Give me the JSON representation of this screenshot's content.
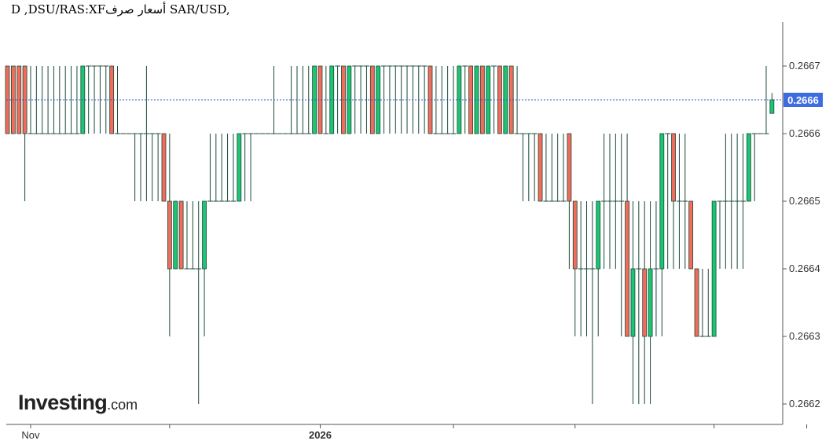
{
  "chart_title": "D ,DSU/RAS:XFأسعار صرف SAR/USD,",
  "logo": {
    "main": "Investing",
    "domain": ".com"
  },
  "colors": {
    "up": "#1cc473",
    "down": "#f26b5b",
    "wick": "#1a4a38",
    "current_line": "#3355cc",
    "price_tag_bg": "#3d6be0",
    "axis": "#555555"
  },
  "chart_data": {
    "type": "candlestick",
    "title": "D ,DSU/RAS:XFأسعار صرف SAR/USD,",
    "xlabel": "",
    "ylabel": "",
    "ylim": [
      0.26615,
      0.26677
    ],
    "y_ticks": [
      "0.2667",
      "0.2666",
      "0.2665",
      "0.2664",
      "0.2663",
      "0.2662"
    ],
    "x_ticks": [
      {
        "label": "Nov",
        "index": 4
      },
      {
        "label": "",
        "index": 28
      },
      {
        "label": "2026",
        "index": 54
      },
      {
        "label": "",
        "index": 77
      },
      {
        "label": "",
        "index": 98
      },
      {
        "label": "",
        "index": 122
      },
      {
        "label": "",
        "index": 138
      }
    ],
    "current_price": "0.2666",
    "current_value": 0.26665,
    "candles": [
      [
        0.2667,
        0.2667,
        0.2666,
        0.2666
      ],
      [
        0.2667,
        0.2667,
        0.2666,
        0.2666
      ],
      [
        0.2667,
        0.2667,
        0.2666,
        0.2666
      ],
      [
        0.2667,
        0.2667,
        0.2665,
        0.2666
      ],
      [
        0.2666,
        0.2667,
        0.2666,
        0.2666
      ],
      [
        0.2666,
        0.2667,
        0.2666,
        0.2666
      ],
      [
        0.2666,
        0.2667,
        0.2666,
        0.2666
      ],
      [
        0.2666,
        0.2667,
        0.2666,
        0.2666
      ],
      [
        0.2666,
        0.2667,
        0.2666,
        0.2666
      ],
      [
        0.2666,
        0.2667,
        0.2666,
        0.2666
      ],
      [
        0.2666,
        0.2667,
        0.2666,
        0.2666
      ],
      [
        0.2666,
        0.2667,
        0.2666,
        0.2666
      ],
      [
        0.2666,
        0.2667,
        0.2666,
        0.2666
      ],
      [
        0.2666,
        0.2667,
        0.2666,
        0.2667
      ],
      [
        0.2667,
        0.2667,
        0.2666,
        0.2667
      ],
      [
        0.2667,
        0.2667,
        0.2666,
        0.2667
      ],
      [
        0.2667,
        0.2667,
        0.2666,
        0.2667
      ],
      [
        0.2667,
        0.2667,
        0.2666,
        0.2667
      ],
      [
        0.2667,
        0.2667,
        0.2666,
        0.2666
      ],
      [
        0.2666,
        0.2667,
        0.2666,
        0.2666
      ],
      [
        0.2666,
        0.2666,
        0.2666,
        0.2666
      ],
      [
        0.2666,
        0.2666,
        0.2666,
        0.2666
      ],
      [
        0.2666,
        0.2666,
        0.2665,
        0.2666
      ],
      [
        0.2666,
        0.2666,
        0.2665,
        0.2666
      ],
      [
        0.2666,
        0.2667,
        0.2665,
        0.2666
      ],
      [
        0.2666,
        0.2666,
        0.2665,
        0.2666
      ],
      [
        0.2666,
        0.2666,
        0.2665,
        0.2666
      ],
      [
        0.2666,
        0.2666,
        0.2665,
        0.2665
      ],
      [
        0.2665,
        0.2666,
        0.2663,
        0.2664
      ],
      [
        0.2664,
        0.2665,
        0.2664,
        0.2665
      ],
      [
        0.2665,
        0.2665,
        0.2664,
        0.2664
      ],
      [
        0.2664,
        0.2665,
        0.2664,
        0.2664
      ],
      [
        0.2664,
        0.2665,
        0.2664,
        0.2664
      ],
      [
        0.2664,
        0.2665,
        0.2662,
        0.2664
      ],
      [
        0.2664,
        0.2665,
        0.2663,
        0.2665
      ],
      [
        0.2665,
        0.2666,
        0.2665,
        0.2665
      ],
      [
        0.2665,
        0.2666,
        0.2665,
        0.2665
      ],
      [
        0.2665,
        0.2666,
        0.2665,
        0.2665
      ],
      [
        0.2665,
        0.2666,
        0.2665,
        0.2665
      ],
      [
        0.2665,
        0.2666,
        0.2665,
        0.2665
      ],
      [
        0.2665,
        0.2666,
        0.2665,
        0.2666
      ],
      [
        0.2666,
        0.2666,
        0.2665,
        0.2666
      ],
      [
        0.2666,
        0.2666,
        0.2665,
        0.2666
      ],
      [
        0.2666,
        0.2666,
        0.2666,
        0.2666
      ],
      [
        0.2666,
        0.2666,
        0.2666,
        0.2666
      ],
      [
        0.2666,
        0.2666,
        0.2666,
        0.2666
      ],
      [
        0.2666,
        0.2667,
        0.2666,
        0.2666
      ],
      [
        0.2666,
        0.2666,
        0.2666,
        0.2666
      ],
      [
        0.2666,
        0.2666,
        0.2666,
        0.2666
      ],
      [
        0.2666,
        0.2667,
        0.2666,
        0.2666
      ],
      [
        0.2666,
        0.2667,
        0.2666,
        0.2666
      ],
      [
        0.2666,
        0.2667,
        0.2666,
        0.2666
      ],
      [
        0.2666,
        0.2667,
        0.2666,
        0.2666
      ],
      [
        0.2666,
        0.2667,
        0.2666,
        0.2667
      ],
      [
        0.2667,
        0.2667,
        0.2666,
        0.2666
      ],
      [
        0.2666,
        0.2667,
        0.2666,
        0.2666
      ],
      [
        0.2666,
        0.2667,
        0.2666,
        0.2667
      ],
      [
        0.2667,
        0.2667,
        0.2666,
        0.2667
      ],
      [
        0.2667,
        0.2667,
        0.2666,
        0.2666
      ],
      [
        0.2666,
        0.2667,
        0.2666,
        0.2667
      ],
      [
        0.2667,
        0.2667,
        0.2666,
        0.2667
      ],
      [
        0.2667,
        0.2667,
        0.2666,
        0.2667
      ],
      [
        0.2667,
        0.2667,
        0.2666,
        0.2667
      ],
      [
        0.2667,
        0.2667,
        0.2666,
        0.2666
      ],
      [
        0.2666,
        0.2667,
        0.2666,
        0.2667
      ],
      [
        0.2667,
        0.2667,
        0.2666,
        0.2667
      ],
      [
        0.2667,
        0.2667,
        0.2666,
        0.2667
      ],
      [
        0.2667,
        0.2667,
        0.2666,
        0.2667
      ],
      [
        0.2667,
        0.2667,
        0.2666,
        0.2667
      ],
      [
        0.2667,
        0.2667,
        0.2666,
        0.2667
      ],
      [
        0.2667,
        0.2667,
        0.2666,
        0.2667
      ],
      [
        0.2667,
        0.2667,
        0.2666,
        0.2667
      ],
      [
        0.2667,
        0.2667,
        0.2666,
        0.2667
      ],
      [
        0.2667,
        0.2667,
        0.2666,
        0.2666
      ],
      [
        0.2666,
        0.2667,
        0.2666,
        0.2666
      ],
      [
        0.2666,
        0.2667,
        0.2666,
        0.2666
      ],
      [
        0.2666,
        0.2667,
        0.2666,
        0.2666
      ],
      [
        0.2666,
        0.2667,
        0.2666,
        0.2666
      ],
      [
        0.2666,
        0.2667,
        0.2666,
        0.2667
      ],
      [
        0.2667,
        0.2667,
        0.2666,
        0.2667
      ],
      [
        0.2667,
        0.2667,
        0.2666,
        0.2666
      ],
      [
        0.2666,
        0.2667,
        0.2666,
        0.2667
      ],
      [
        0.2667,
        0.2667,
        0.2666,
        0.2666
      ],
      [
        0.2666,
        0.2667,
        0.2666,
        0.2667
      ],
      [
        0.2667,
        0.2667,
        0.2666,
        0.2667
      ],
      [
        0.2667,
        0.2667,
        0.2666,
        0.2666
      ],
      [
        0.2666,
        0.2667,
        0.2666,
        0.2667
      ],
      [
        0.2667,
        0.2667,
        0.2666,
        0.2666
      ],
      [
        0.2666,
        0.2667,
        0.2666,
        0.2666
      ],
      [
        0.2666,
        0.2666,
        0.2665,
        0.2666
      ],
      [
        0.2666,
        0.2666,
        0.2665,
        0.2666
      ],
      [
        0.2666,
        0.2666,
        0.2665,
        0.2666
      ],
      [
        0.2666,
        0.2666,
        0.2665,
        0.2665
      ],
      [
        0.2665,
        0.2666,
        0.2665,
        0.2665
      ],
      [
        0.2665,
        0.2666,
        0.2665,
        0.2665
      ],
      [
        0.2665,
        0.2666,
        0.2665,
        0.2665
      ],
      [
        0.2665,
        0.2666,
        0.2665,
        0.2665
      ],
      [
        0.2666,
        0.2666,
        0.2664,
        0.2665
      ],
      [
        0.2665,
        0.2665,
        0.2663,
        0.2664
      ],
      [
        0.2664,
        0.2665,
        0.2663,
        0.2664
      ],
      [
        0.2664,
        0.2665,
        0.2663,
        0.2664
      ],
      [
        0.2664,
        0.2665,
        0.2662,
        0.2664
      ],
      [
        0.2664,
        0.2665,
        0.2663,
        0.2665
      ],
      [
        0.2665,
        0.2666,
        0.2664,
        0.2665
      ],
      [
        0.2665,
        0.2666,
        0.2664,
        0.2665
      ],
      [
        0.2665,
        0.2666,
        0.2664,
        0.2665
      ],
      [
        0.2665,
        0.2666,
        0.2663,
        0.2665
      ],
      [
        0.2665,
        0.2666,
        0.2663,
        0.2663
      ],
      [
        0.2663,
        0.2665,
        0.2662,
        0.2664
      ],
      [
        0.2664,
        0.2665,
        0.2662,
        0.2664
      ],
      [
        0.2664,
        0.2665,
        0.2662,
        0.2663
      ],
      [
        0.2663,
        0.2665,
        0.2662,
        0.2664
      ],
      [
        0.2664,
        0.2665,
        0.2663,
        0.2664
      ],
      [
        0.2664,
        0.2666,
        0.2663,
        0.2666
      ],
      [
        0.2666,
        0.2666,
        0.2664,
        0.2666
      ],
      [
        0.2666,
        0.2666,
        0.2664,
        0.2665
      ],
      [
        0.2665,
        0.2666,
        0.2664,
        0.2665
      ],
      [
        0.2665,
        0.2666,
        0.2664,
        0.2665
      ],
      [
        0.2665,
        0.2665,
        0.2664,
        0.2664
      ],
      [
        0.2664,
        0.2664,
        0.2663,
        0.2663
      ],
      [
        0.2663,
        0.2664,
        0.2663,
        0.2663
      ],
      [
        0.2663,
        0.2664,
        0.2663,
        0.2663
      ],
      [
        0.2663,
        0.2665,
        0.2663,
        0.2665
      ],
      [
        0.2665,
        0.2665,
        0.2664,
        0.2665
      ],
      [
        0.2665,
        0.2666,
        0.2664,
        0.2665
      ],
      [
        0.2665,
        0.2666,
        0.2664,
        0.2665
      ],
      [
        0.2665,
        0.2666,
        0.2664,
        0.2665
      ],
      [
        0.2665,
        0.2666,
        0.2664,
        0.2665
      ],
      [
        0.2665,
        0.2666,
        0.2665,
        0.2666
      ],
      [
        0.2666,
        0.2666,
        0.2665,
        0.2666
      ],
      [
        0.2666,
        0.2666,
        0.2666,
        0.2666
      ],
      [
        0.2666,
        0.2667,
        0.2666,
        0.2666
      ],
      [
        0.26663,
        0.26666,
        0.26663,
        0.26665
      ]
    ]
  }
}
